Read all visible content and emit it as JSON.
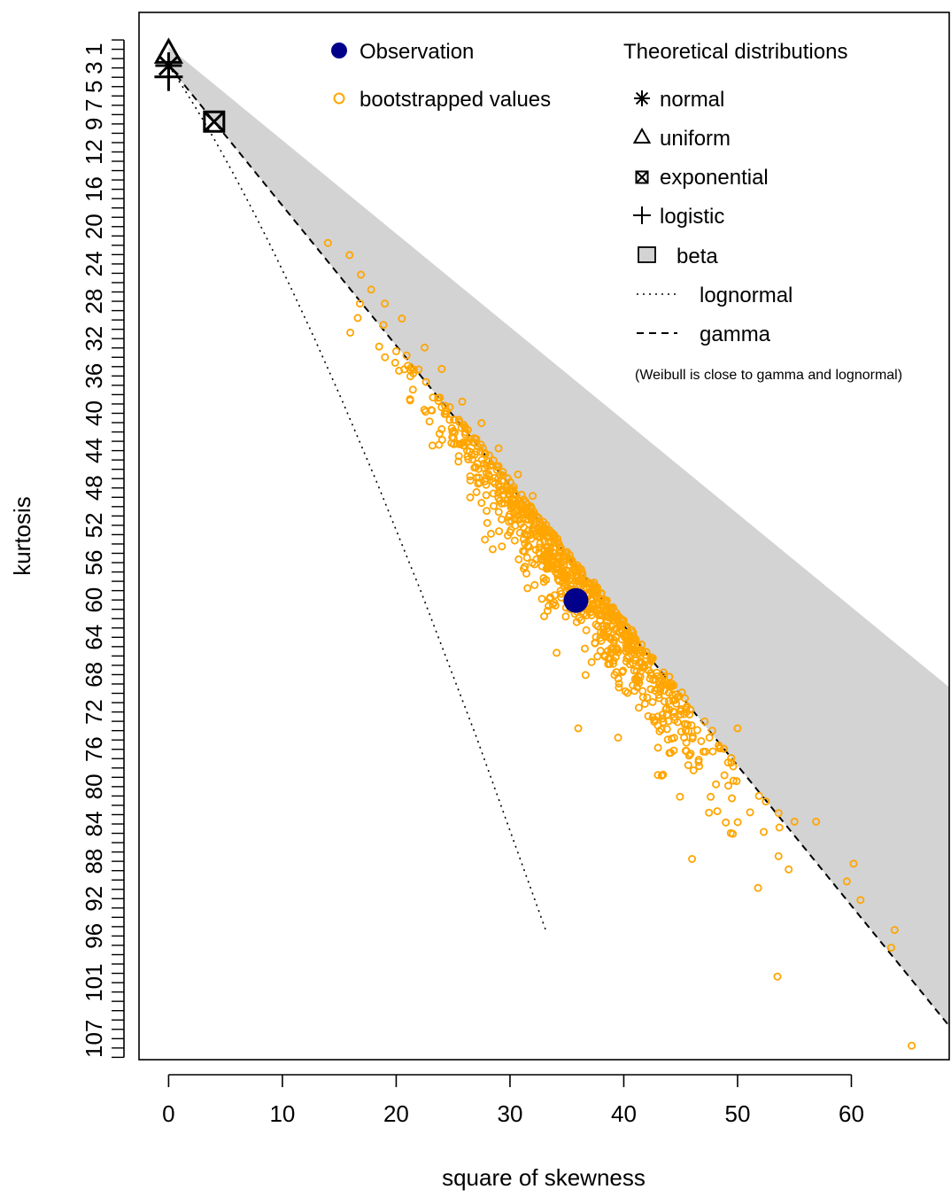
{
  "chart_data": {
    "type": "scatter",
    "title": "",
    "xlabel": "square of skewness",
    "ylabel": "kurtosis",
    "xlim": [
      -2.6,
      68.6
    ],
    "ylim": [
      109.5,
      -2.7
    ],
    "x_ticks": [
      0,
      10,
      20,
      30,
      40,
      50,
      60
    ],
    "y_tick_labels": [
      "1",
      "3",
      "5",
      "7",
      "9",
      "12",
      "16",
      "20",
      "24",
      "28",
      "32",
      "36",
      "40",
      "44",
      "48",
      "52",
      "56",
      "60",
      "64",
      "68",
      "72",
      "76",
      "80",
      "84",
      "88",
      "92",
      "96",
      "101",
      "107"
    ],
    "y_reversed": true,
    "observation": {
      "x": 35.8,
      "y": 60.3,
      "color": "#00008B"
    },
    "bootstrap_color": "#FFA500",
    "bootstrap": {
      "n": 900,
      "x_range": [
        14.0,
        65.3
      ],
      "y_range": [
        22.0,
        108.0
      ],
      "sample_points": [
        [
          14.0,
          22.0
        ],
        [
          15.9,
          23.3
        ],
        [
          16.9,
          25.4
        ],
        [
          17.8,
          27.0
        ],
        [
          19.0,
          28.5
        ],
        [
          20.5,
          30.1
        ],
        [
          22.5,
          33.2
        ],
        [
          24.0,
          35.5
        ],
        [
          25.8,
          39.0
        ],
        [
          27.5,
          41.3
        ],
        [
          29.0,
          44.0
        ],
        [
          30.7,
          46.8
        ],
        [
          32.0,
          49.1
        ],
        [
          33.5,
          53.0
        ],
        [
          34.9,
          55.6
        ],
        [
          35.8,
          60.3
        ],
        [
          37.4,
          58.4
        ],
        [
          38.5,
          61.0
        ],
        [
          40.0,
          64.0
        ],
        [
          41.6,
          67.0
        ],
        [
          43.2,
          70.0
        ],
        [
          44.0,
          72.0
        ],
        [
          45.3,
          75.0
        ],
        [
          47.0,
          76.5
        ],
        [
          48.1,
          80.0
        ],
        [
          49.5,
          81.5
        ],
        [
          51.1,
          83.0
        ],
        [
          52.3,
          85.1
        ],
        [
          53.6,
          87.7
        ],
        [
          55.0,
          84.0
        ],
        [
          56.9,
          84.0
        ],
        [
          59.6,
          90.4
        ],
        [
          60.2,
          88.5
        ],
        [
          60.8,
          92.4
        ],
        [
          63.8,
          95.6
        ],
        [
          63.5,
          97.5
        ],
        [
          65.3,
          108.0
        ],
        [
          53.5,
          100.6
        ],
        [
          51.8,
          91.1
        ],
        [
          36.0,
          74.0
        ],
        [
          30.0,
          53.0
        ],
        [
          26.5,
          47.0
        ],
        [
          20.0,
          33.6
        ],
        [
          18.5,
          33.1
        ],
        [
          46.0,
          88.0
        ],
        [
          43.0,
          79.0
        ],
        [
          39.5,
          75.0
        ],
        [
          33.0,
          62.0
        ],
        [
          28.0,
          52.0
        ],
        [
          50.0,
          74.0
        ]
      ]
    },
    "beta_region_color": "#D3D3D3",
    "distributions": [
      {
        "name": "normal",
        "x": 0,
        "y": 3
      },
      {
        "name": "uniform",
        "x": 0,
        "y": 1.8
      },
      {
        "name": "exponential",
        "x": 4,
        "y": 9
      },
      {
        "name": "logistic",
        "x": 0,
        "y": 4.2
      }
    ],
    "legend_observation": {
      "items": [
        {
          "label": "Observation",
          "symbol": "filled-circle",
          "color": "#00008B"
        },
        {
          "label": "bootstrapped values",
          "symbol": "open-circle",
          "color": "#FFA500"
        }
      ],
      "position": "top-center"
    },
    "legend_theoretical": {
      "title": "Theoretical distributions",
      "items": [
        {
          "label": "normal",
          "symbol": "asterisk"
        },
        {
          "label": "uniform",
          "symbol": "triangle"
        },
        {
          "label": "exponential",
          "symbol": "boxed-x"
        },
        {
          "label": "logistic",
          "symbol": "plus"
        },
        {
          "label": "beta",
          "symbol": "grey-box"
        },
        {
          "label": "lognormal",
          "symbol": "dotted-line"
        },
        {
          "label": "gamma",
          "symbol": "dashed-line"
        }
      ],
      "note": "(Weibull is close to gamma and lognormal)",
      "position": "top-right"
    }
  }
}
